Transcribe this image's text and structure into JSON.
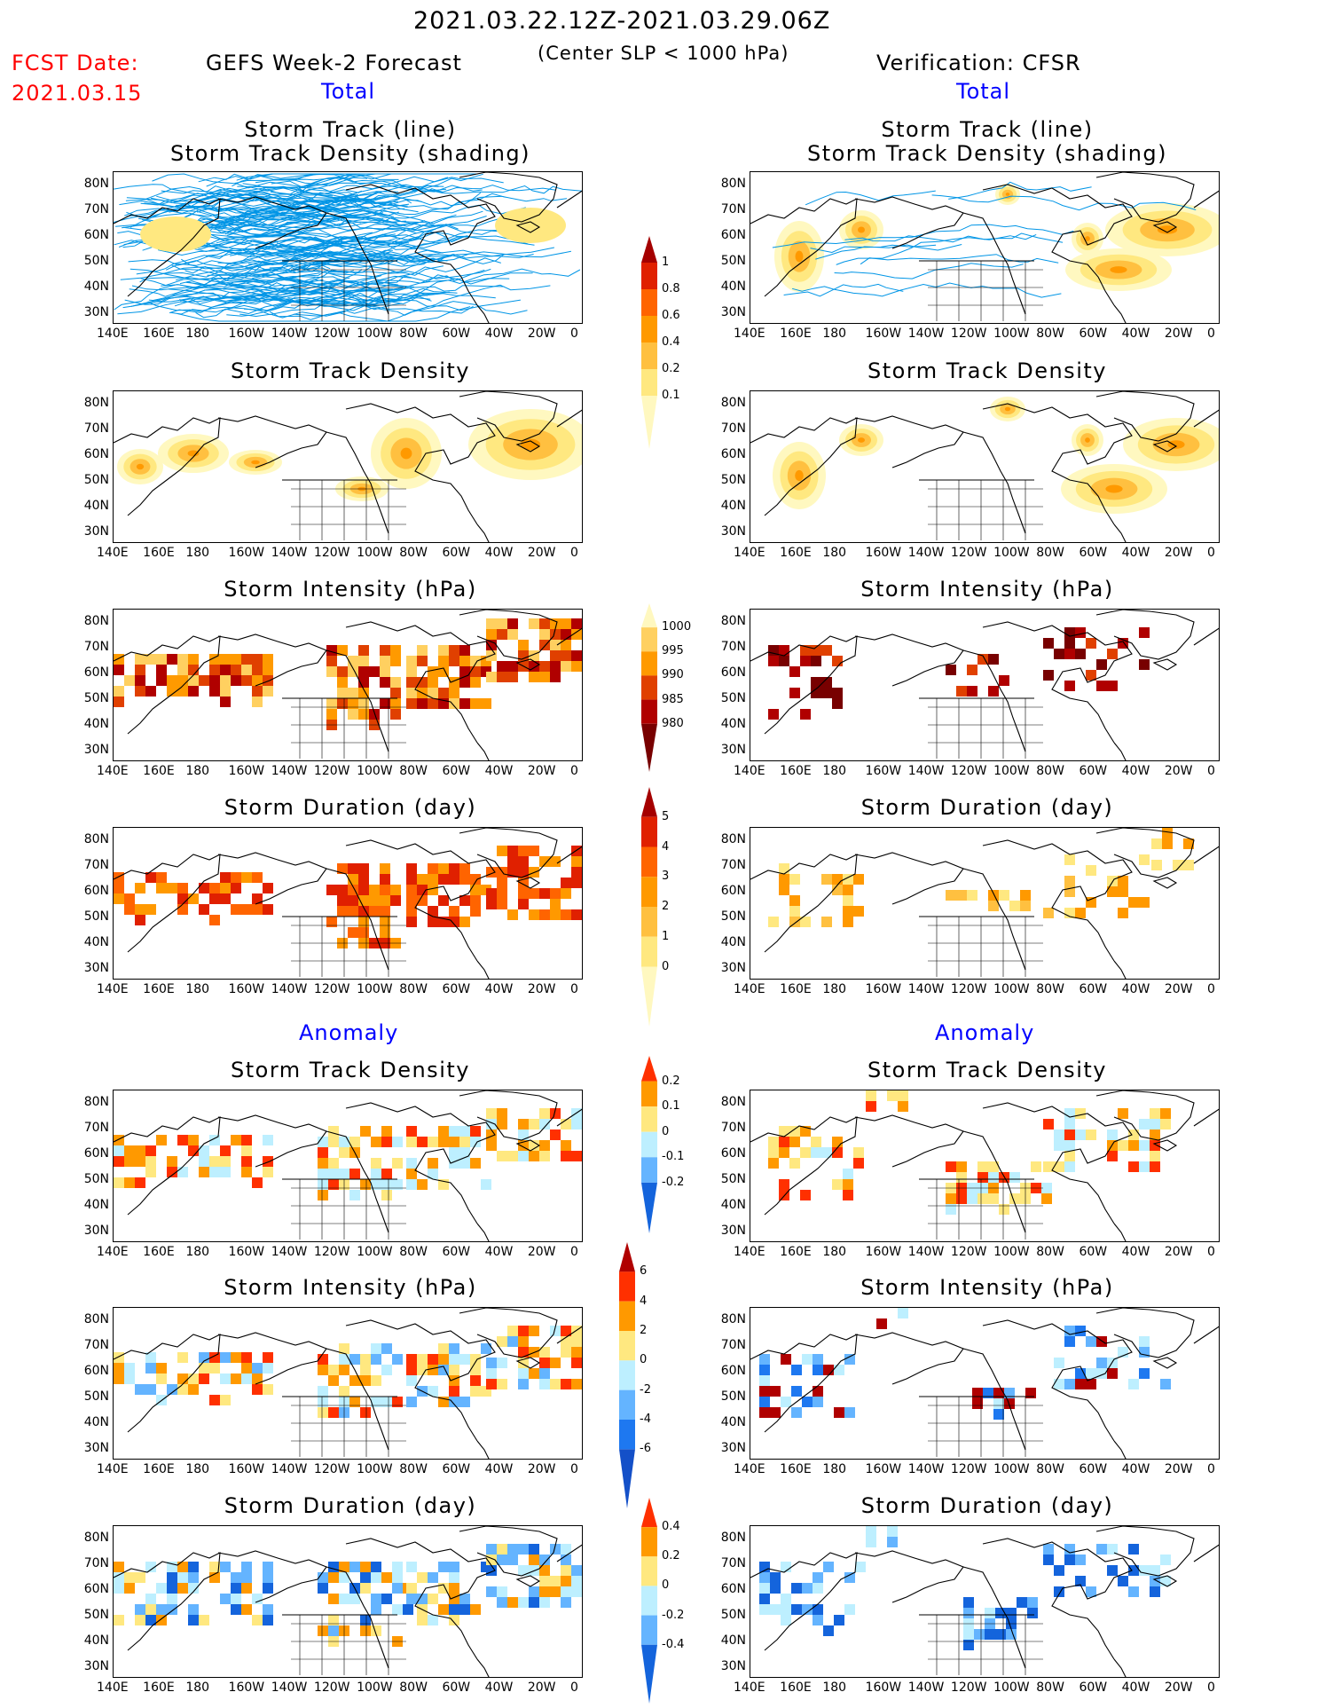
{
  "header": {
    "period": "2021.03.22.12Z-2021.03.29.06Z",
    "criterion": "(Center SLP < 1000 hPa)",
    "fcst_label": "FCST Date:",
    "fcst_date": "2021.03.15",
    "left_title": "GEFS Week-2 Forecast",
    "right_title": "Verification: CFSR",
    "total_label": "Total",
    "anomaly_label": "Anomaly"
  },
  "panel_titles": {
    "track_line": "Storm Track (line)",
    "track_shading": "Storm Track Density (shading)",
    "density": "Storm Track Density",
    "intensity": "Storm Intensity (hPa)",
    "duration": "Storm Duration (day)"
  },
  "axes": {
    "lat_ticks": [
      "80N",
      "70N",
      "60N",
      "50N",
      "40N",
      "30N"
    ],
    "lon_ticks": [
      "140E",
      "160E",
      "180",
      "160W",
      "140W",
      "120W",
      "100W",
      "80W",
      "60W",
      "40W",
      "20W",
      "0"
    ]
  },
  "colorbars": {
    "density_total": {
      "labels": [
        "1",
        "0.8",
        "0.6",
        "0.4",
        "0.2",
        "0.1"
      ],
      "colors": [
        "#a50000",
        "#e02000",
        "#ff6400",
        "#ff9900",
        "#ffc040",
        "#ffe880",
        "#fff8c0"
      ]
    },
    "intensity_total": {
      "labels": [
        "1000",
        "995",
        "990",
        "985",
        "980"
      ],
      "colors": [
        "#fff8c0",
        "#ffd060",
        "#ff9a00",
        "#e04000",
        "#b00000",
        "#780000"
      ]
    },
    "duration_total": {
      "labels": [
        "5",
        "4",
        "3",
        "2",
        "1",
        "0"
      ],
      "colors": [
        "#a50000",
        "#e02000",
        "#ff6400",
        "#ff9900",
        "#ffc040",
        "#ffe880",
        "#fff8c0"
      ]
    },
    "density_anom": {
      "labels": [
        "0.2",
        "0.1",
        "0",
        "-0.1",
        "-0.2"
      ],
      "colors": [
        "#ff3000",
        "#ff9900",
        "#ffe880",
        "#bdefff",
        "#64b4ff",
        "#1464dc"
      ]
    },
    "intensity_anom": {
      "labels": [
        "6",
        "4",
        "2",
        "0",
        "-2",
        "-4",
        "-6"
      ],
      "colors": [
        "#b00000",
        "#ff3000",
        "#ff9900",
        "#ffe880",
        "#bdefff",
        "#64b4ff",
        "#1e78f0",
        "#1450c8"
      ]
    },
    "duration_anom": {
      "labels": [
        "0.4",
        "0.2",
        "0",
        "-0.2",
        "-0.4"
      ],
      "colors": [
        "#ff3000",
        "#ff9900",
        "#ffe880",
        "#bdefff",
        "#64b4ff",
        "#1464dc"
      ]
    }
  },
  "colors": {
    "track_line": "#0095e6",
    "header_red": "#ff0000",
    "header_blue": "#0000ff"
  }
}
